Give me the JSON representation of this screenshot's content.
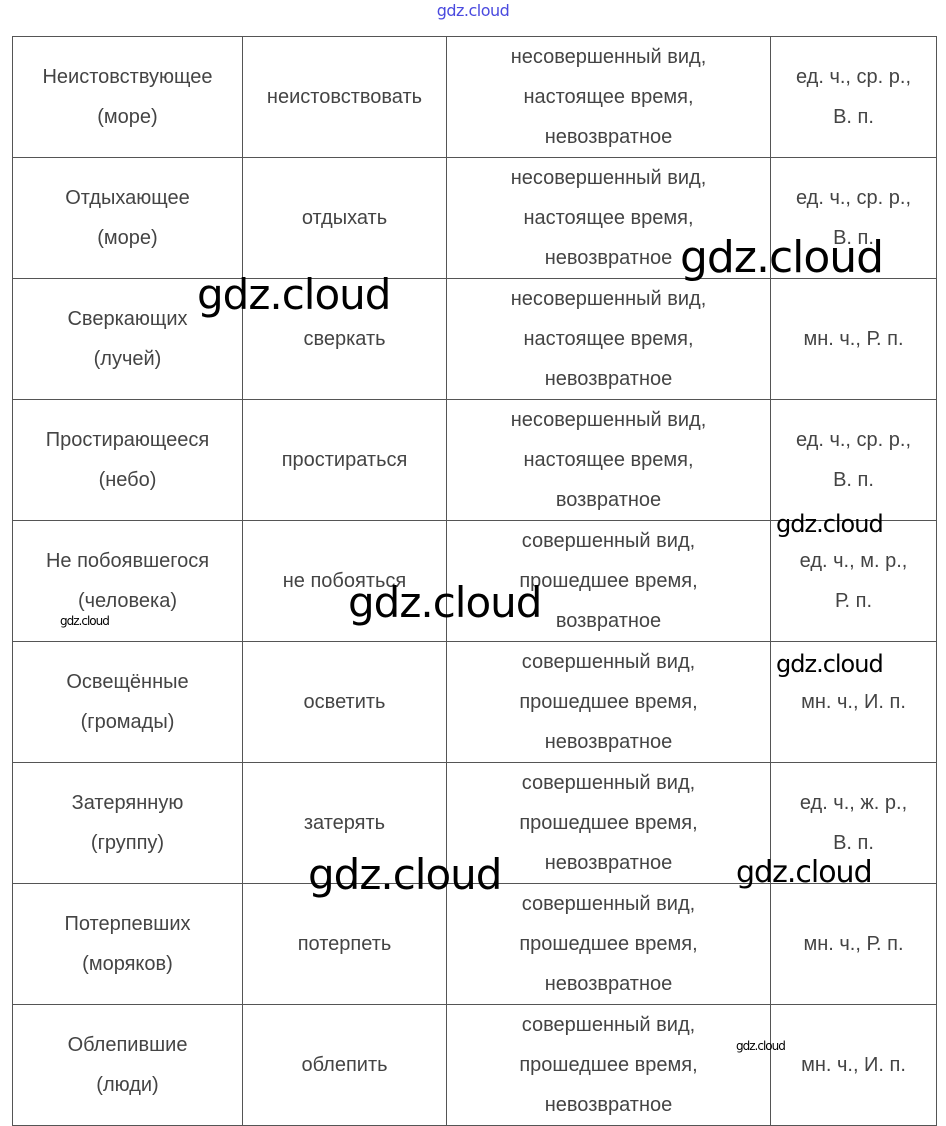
{
  "watermark": "gdz.cloud",
  "rows": [
    {
      "word": "Неистовствующее",
      "noun": "(море)",
      "infinitive": "неистовствовать",
      "aspect": "несовершенный вид,",
      "tense": "настоящее время,",
      "reflexive": "невозвратное",
      "form1": "ед. ч., ср. р.,",
      "form2": "В. п."
    },
    {
      "word": "Отдыхающее",
      "noun": "(море)",
      "infinitive": "отдыхать",
      "aspect": "несовершенный вид,",
      "tense": "настоящее время,",
      "reflexive": "невозвратное",
      "form1": "ед. ч., ср. р.,",
      "form2": "В. п."
    },
    {
      "word": "Сверкающих",
      "noun": "(лучей)",
      "infinitive": "сверкать",
      "aspect": "несовершенный вид,",
      "tense": "настоящее время,",
      "reflexive": "невозвратное",
      "form1": "мн. ч., Р. п.",
      "form2": ""
    },
    {
      "word": "Простирающееся",
      "noun": "(небо)",
      "infinitive": "простираться",
      "aspect": "несовершенный вид,",
      "tense": "настоящее время,",
      "reflexive": "возвратное",
      "form1": "ед. ч., ср. р.,",
      "form2": "В. п."
    },
    {
      "word": "Не побоявшегося",
      "noun": "(человека)",
      "infinitive": "не побояться",
      "aspect": "совершенный вид,",
      "tense": "прошедшее время,",
      "reflexive": "возвратное",
      "form1": "ед. ч., м. р.,",
      "form2": "Р. п."
    },
    {
      "word": "Освещённые",
      "noun": "(громады)",
      "infinitive": "осветить",
      "aspect": "совершенный вид,",
      "tense": "прошедшее время,",
      "reflexive": "невозвратное",
      "form1": "мн. ч., И. п.",
      "form2": ""
    },
    {
      "word": "Затерянную",
      "noun": "(группу)",
      "infinitive": "затерять",
      "aspect": "совершенный вид,",
      "tense": "прошедшее время,",
      "reflexive": "невозвратное",
      "form1": "ед. ч., ж. р.,",
      "form2": "В. п."
    },
    {
      "word": "Потерпевших",
      "noun": "(моряков)",
      "infinitive": "потерпеть",
      "aspect": "совершенный вид,",
      "tense": "прошедшее время,",
      "reflexive": "невозвратное",
      "form1": "мн. ч., Р. п.",
      "form2": ""
    },
    {
      "word": "Облепившие",
      "noun": "(люди)",
      "infinitive": "облепить",
      "aspect": "совершенный вид,",
      "tense": "прошедшее время,",
      "reflexive": "невозвратное",
      "form1": "мн. ч., И. п.",
      "form2": ""
    }
  ]
}
